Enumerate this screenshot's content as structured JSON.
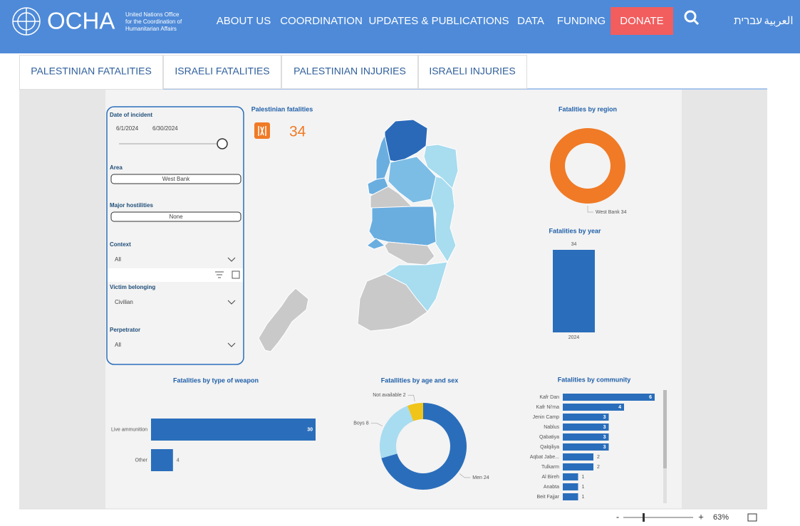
{
  "header": {
    "logo": "OCHA",
    "logo_sub": [
      "United Nations Office",
      "for the Coordination of",
      "Humanitarian Affairs"
    ],
    "nav": [
      "ABOUT US",
      "COORDINATION",
      "UPDATES & PUBLICATIONS",
      "DATA",
      "FUNDING"
    ],
    "donate": "DONATE",
    "languages": [
      "עברית",
      "العربية"
    ]
  },
  "tabs": [
    "PALESTINIAN FATALITIES",
    "ISRAELI FATALITIES",
    "PALESTINIAN INJURIES",
    "ISRAELI INJURIES"
  ],
  "filters": {
    "date_label": "Date of incident",
    "date_start": "6/1/2024",
    "date_end": "6/30/2024",
    "area_label": "Area",
    "area_value": "West Bank",
    "hostilities_label": "Major hostilities",
    "hostilities_value": "None",
    "context_label": "Context",
    "context_value": "All",
    "victim_label": "Victim belonging",
    "victim_value": "Civilian",
    "perpetrator_label": "Perpetrator",
    "perpetrator_value": "All"
  },
  "kpi": {
    "title": "Palestinian fatalities",
    "value": 34
  },
  "chart_data": [
    {
      "type": "pie",
      "title": "Fatalities by region",
      "categories": [
        "West Bank"
      ],
      "values": [
        34
      ],
      "colors": [
        "#f07a26"
      ]
    },
    {
      "type": "bar",
      "title": "Fatalities by year",
      "categories": [
        "2024"
      ],
      "values": [
        34
      ],
      "color": "#2a6ebb"
    },
    {
      "type": "bar",
      "orientation": "horizontal",
      "title": "Fatalities by type of weapon",
      "categories": [
        "Live ammunition",
        "Other"
      ],
      "values": [
        30,
        4
      ],
      "color": "#2a6ebb"
    },
    {
      "type": "pie",
      "title": "Fatallities by age and sex",
      "categories": [
        "Men",
        "Boys",
        "Not available"
      ],
      "values": [
        24,
        8,
        2
      ],
      "colors": [
        "#2a6ebb",
        "#a8dcf0",
        "#f0c419"
      ]
    },
    {
      "type": "bar",
      "orientation": "horizontal",
      "title": "Fatalities by community",
      "categories": [
        "Kafr Dan",
        "Kafr Ni'ma",
        "Jenin Camp",
        "Nablus",
        "Qabatiya",
        "Qalqiliya",
        "Aqbat Jabe...",
        "Tulkarm",
        "Al Bireh",
        "Anabta",
        "Beit Fajjar"
      ],
      "values": [
        6,
        4,
        3,
        3,
        3,
        3,
        2,
        2,
        1,
        1,
        1
      ],
      "color": "#2a6ebb"
    }
  ],
  "footer": {
    "zoom_minus": "-",
    "zoom_plus": "+",
    "zoom": "63%"
  }
}
